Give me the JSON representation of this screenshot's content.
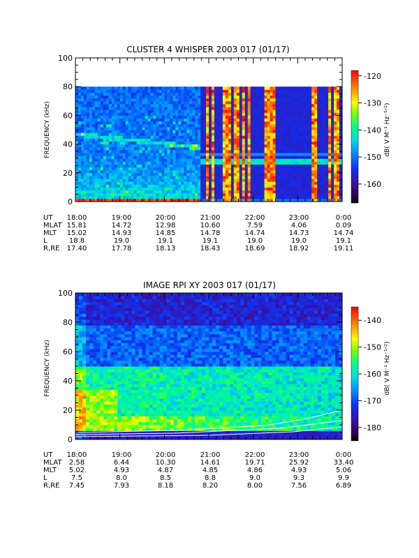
{
  "chart_data": [
    {
      "type": "heatmap",
      "title": "CLUSTER 4 WHISPER 2003 017 (01/17)",
      "ylabel": "FREQUENCY (kHz)",
      "yticks": [
        "0",
        "20",
        "40",
        "60",
        "80",
        "100"
      ],
      "ylim": [
        0,
        100
      ],
      "data_max_freq": 80,
      "colorbar": {
        "label": "dB( V M⁻¹ Hz⁻¹ᐟ²)",
        "ticks": [
          "-120",
          "-130",
          "-140",
          "-150",
          "-160"
        ],
        "range": [
          -167,
          -118
        ]
      },
      "ephemeris": {
        "labels": [
          "UT",
          "MLAT",
          "MLT",
          "L",
          "R,RE"
        ],
        "rows": [
          [
            "18:00",
            "19:00",
            "20:00",
            "21:00",
            "22:00",
            "23:00",
            "0:00"
          ],
          [
            "15.81",
            "14.72",
            "12.98",
            "10.60",
            "7.59",
            "4.06",
            "0.09"
          ],
          [
            "15.02",
            "14.93",
            "14.85",
            "14.78",
            "14.74",
            "14.73",
            "14.74"
          ],
          [
            "18.8",
            "19.0",
            "19.1",
            "19.1",
            "19.0",
            "19.0",
            "19.1"
          ],
          [
            "17.40",
            "17.78",
            "18.13",
            "18.43",
            "18.69",
            "18.92",
            "19.11"
          ]
        ]
      }
    },
    {
      "type": "heatmap",
      "title": "IMAGE RPI XY 2003 017 (01/17)",
      "ylabel": "FREQUENCY (kHz)",
      "yticks": [
        "0",
        "20",
        "40",
        "60",
        "80",
        "100"
      ],
      "ylim": [
        0,
        100
      ],
      "colorbar": {
        "label": "dB( V M⁻¹ Hz⁻¹ᐟ²)",
        "ticks": [
          "-140",
          "-150",
          "-160",
          "-170",
          "-180"
        ],
        "range": [
          -185,
          -135
        ]
      },
      "ephemeris": {
        "labels": [
          "UT",
          "MLAT",
          "MLT",
          "L",
          "R,RE"
        ],
        "rows": [
          [
            "18:00",
            "19:00",
            "20:00",
            "21:00",
            "22:00",
            "23:00",
            "0:00"
          ],
          [
            "2.58",
            "6.44",
            "10.30",
            "14.61",
            "19.71",
            "25.92",
            "33.40"
          ],
          [
            "5.02",
            "4.93",
            "4.87",
            "4.85",
            "4.86",
            "4.93",
            "5.06"
          ],
          [
            "7.5",
            "8.0",
            "8.5",
            "8.8",
            "9.0",
            "9.3",
            "9.9"
          ],
          [
            "7.45",
            "7.93",
            "8.18",
            "8.20",
            "8.00",
            "7.56",
            "6.89"
          ]
        ]
      }
    }
  ]
}
